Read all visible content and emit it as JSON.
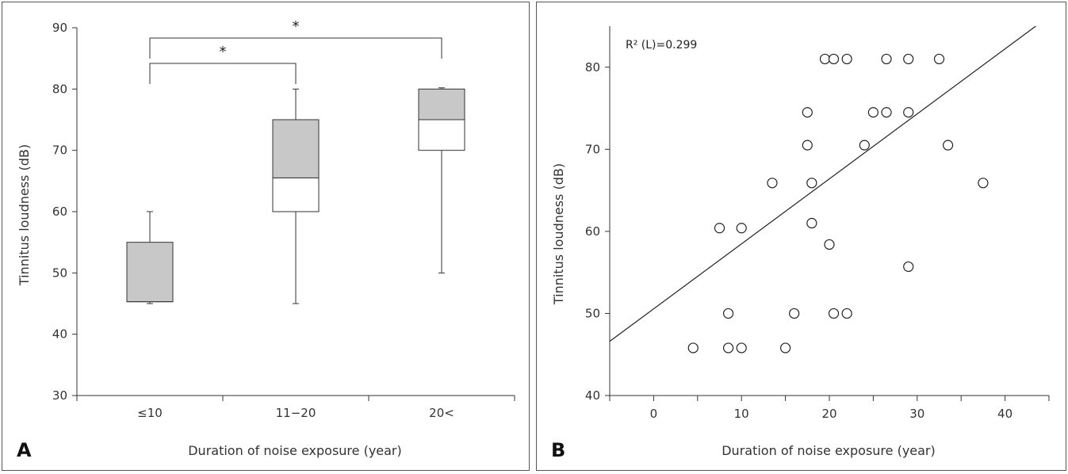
{
  "chart_data": [
    {
      "panel_label": "A",
      "type": "box",
      "xlabel": "Duration of noise exposure (year)",
      "ylabel": "Tinnitus loudness (dB)",
      "ylim": [
        30,
        90
      ],
      "yticks": [
        30,
        40,
        50,
        60,
        70,
        80,
        90
      ],
      "categories": [
        "≤10",
        "11−20",
        "20<"
      ],
      "boxes": [
        {
          "min": 45,
          "q1": 45.3,
          "median": 45.3,
          "q3": 55,
          "max": 60
        },
        {
          "min": 45,
          "q1": 60,
          "median": 65.5,
          "q3": 75,
          "max": 80
        },
        {
          "min": 50,
          "q1": 70,
          "median": 75,
          "q3": 80,
          "max": 80.2
        }
      ],
      "significance": [
        {
          "from": 0,
          "to": 1,
          "label": "*"
        },
        {
          "from": 0,
          "to": 2,
          "label": "*"
        }
      ],
      "box_fill_upper": "#c8c8c8",
      "box_fill_lower": "#ffffff"
    },
    {
      "panel_label": "B",
      "type": "scatter",
      "xlabel": "Duration of noise exposure (year)",
      "ylabel": "Tinnitus loudness (dB)",
      "xlim": [
        -5,
        45
      ],
      "ylim": [
        40,
        85
      ],
      "xticks": [
        0,
        10,
        20,
        30,
        40
      ],
      "yticks": [
        40,
        50,
        60,
        70,
        80
      ],
      "annotation": "R² (L)=0.299",
      "fit_line": {
        "x": [
          -5,
          43.5
        ],
        "y": [
          46.6,
          85
        ]
      },
      "points": [
        {
          "x": 4.5,
          "y": 45.8
        },
        {
          "x": 8.5,
          "y": 45.8
        },
        {
          "x": 10,
          "y": 45.8
        },
        {
          "x": 15,
          "y": 45.8
        },
        {
          "x": 8.5,
          "y": 50
        },
        {
          "x": 16,
          "y": 50
        },
        {
          "x": 20.5,
          "y": 50
        },
        {
          "x": 22,
          "y": 50
        },
        {
          "x": 7.5,
          "y": 60.4
        },
        {
          "x": 10,
          "y": 60.4
        },
        {
          "x": 18,
          "y": 61
        },
        {
          "x": 20,
          "y": 58.4
        },
        {
          "x": 13.5,
          "y": 65.9
        },
        {
          "x": 18,
          "y": 65.9
        },
        {
          "x": 37.5,
          "y": 65.9
        },
        {
          "x": 17.5,
          "y": 70.5
        },
        {
          "x": 24,
          "y": 70.5
        },
        {
          "x": 33.5,
          "y": 70.5
        },
        {
          "x": 17.5,
          "y": 74.5
        },
        {
          "x": 25,
          "y": 74.5
        },
        {
          "x": 26.5,
          "y": 74.5
        },
        {
          "x": 29,
          "y": 74.5
        },
        {
          "x": 19.5,
          "y": 81
        },
        {
          "x": 20.5,
          "y": 81
        },
        {
          "x": 22,
          "y": 81
        },
        {
          "x": 26.5,
          "y": 81
        },
        {
          "x": 29,
          "y": 81
        },
        {
          "x": 32.5,
          "y": 81
        },
        {
          "x": 29,
          "y": 55.7
        }
      ]
    }
  ]
}
